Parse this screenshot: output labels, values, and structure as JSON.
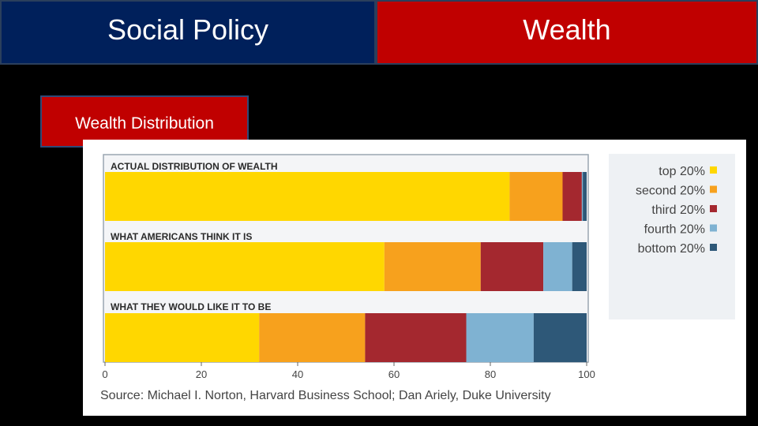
{
  "header": {
    "left_title": "Social Policy",
    "right_title": "Wealth"
  },
  "sub_label": "Wealth Distribution",
  "colors": {
    "top": "#ffd700",
    "second": "#f7a11d",
    "third": "#a4282f",
    "fourth": "#7fb2d2",
    "bottom": "#2e5878"
  },
  "chart_data": {
    "type": "bar",
    "orientation": "horizontal-stacked",
    "xlim": [
      0,
      100
    ],
    "xticks": [
      "0",
      "20",
      "40",
      "60",
      "80",
      "100"
    ],
    "categories": [
      "ACTUAL DISTRIBUTION OF WEALTH",
      "WHAT AMERICANS THINK IT IS",
      "WHAT THEY WOULD LIKE IT TO BE"
    ],
    "series": [
      {
        "name": "top 20%",
        "values": [
          84,
          58,
          32
        ]
      },
      {
        "name": "second 20%",
        "values": [
          11,
          20,
          22
        ]
      },
      {
        "name": "third 20%",
        "values": [
          4,
          13,
          21
        ]
      },
      {
        "name": "fourth 20%",
        "values": [
          0.2,
          6,
          14
        ]
      },
      {
        "name": "bottom 20%",
        "values": [
          0.8,
          3,
          11
        ]
      }
    ],
    "legend": [
      "top 20%",
      "second 20%",
      "third 20%",
      "fourth 20%",
      "bottom 20%"
    ],
    "legend_position": "right",
    "source": "Source: Michael I. Norton, Harvard Business School; Dan Ariely, Duke University"
  }
}
